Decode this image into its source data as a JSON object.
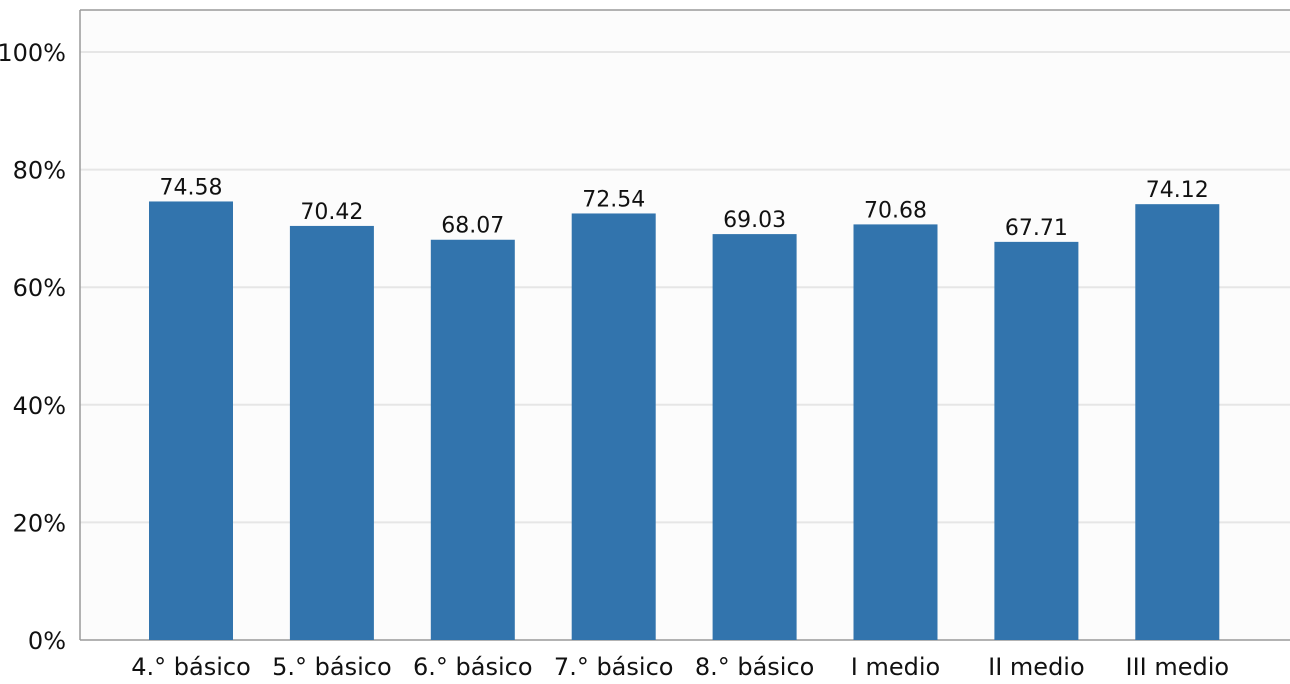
{
  "chart_data": {
    "type": "bar",
    "categories": [
      "4.° básico",
      "5.° básico",
      "6.° básico",
      "7.° básico",
      "8.° básico",
      "I medio",
      "II medio",
      "III medio"
    ],
    "values": [
      74.58,
      70.42,
      68.07,
      72.54,
      69.03,
      70.68,
      67.71,
      74.12
    ],
    "data_labels": [
      "74.58",
      "70.42",
      "68.07",
      "72.54",
      "69.03",
      "70.68",
      "67.71",
      "74.12"
    ],
    "y_ticks": [
      0,
      20,
      40,
      60,
      80,
      100
    ],
    "y_tick_labels": [
      "0%",
      "20%",
      "40%",
      "60%",
      "80%",
      "100%"
    ],
    "ylim": [
      0,
      100
    ],
    "grid": true,
    "colors": {
      "bar": "#3274ad",
      "grid": "#e6e6e6",
      "axis": "#9a9a9a",
      "plot_bg": "#fcfcfc"
    }
  }
}
